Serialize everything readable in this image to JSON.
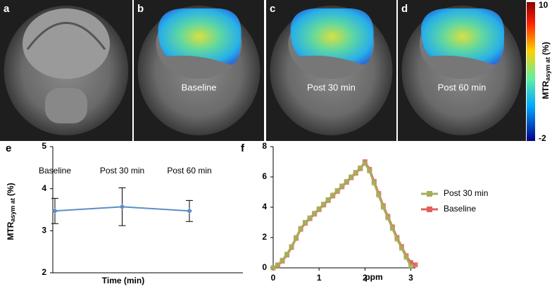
{
  "panels": [
    {
      "label": "a"
    },
    {
      "label": "b",
      "caption": "Baseline"
    },
    {
      "label": "c",
      "caption": "Post 30 min"
    },
    {
      "label": "d",
      "caption": "Post 60 min"
    }
  ],
  "colorbar": {
    "max": 10,
    "min": -2,
    "title": "MTR",
    "title_sub": "asym at",
    "title_unit": "(%)"
  },
  "chart_data": [
    {
      "type": "line",
      "label": "e",
      "categories": [
        "Baseline",
        "Post 30 min",
        "Post 60 min"
      ],
      "values": [
        3.47,
        3.57,
        3.47
      ],
      "errors": [
        0.3,
        0.45,
        0.25
      ],
      "color": "#5b8fc7",
      "ylim": [
        2,
        5
      ],
      "yticks": [
        2,
        3,
        4,
        5
      ],
      "xlabel": "Time (min)",
      "ylabel": "MTR",
      "ylabel_sub": "asym at",
      "ylabel_unit": "(%)"
    },
    {
      "type": "line",
      "label": "f",
      "x": [
        0,
        0.1,
        0.2,
        0.3,
        0.4,
        0.5,
        0.6,
        0.7,
        0.8,
        0.9,
        1.0,
        1.1,
        1.2,
        1.3,
        1.4,
        1.5,
        1.6,
        1.7,
        1.8,
        1.9,
        2.0,
        2.1,
        2.2,
        2.3,
        2.4,
        2.5,
        2.6,
        2.7,
        2.8,
        2.9,
        3.0,
        3.1
      ],
      "series": [
        {
          "name": "Post 30 min",
          "color": "#a8ad5c",
          "values": [
            0,
            0.2,
            0.5,
            0.9,
            1.4,
            2.0,
            2.6,
            3.0,
            3.3,
            3.6,
            3.9,
            4.2,
            4.5,
            4.8,
            5.1,
            5.4,
            5.7,
            6.0,
            6.3,
            6.6,
            6.9,
            6.4,
            5.6,
            4.8,
            4.0,
            3.3,
            2.6,
            1.9,
            1.3,
            0.7,
            0.1,
            null
          ]
        },
        {
          "name": "Baseline",
          "color": "#e0625c",
          "values": [
            0,
            0.15,
            0.45,
            0.85,
            1.35,
            1.95,
            2.55,
            2.95,
            3.25,
            3.55,
            3.85,
            4.15,
            4.45,
            4.75,
            5.05,
            5.35,
            5.65,
            5.95,
            6.25,
            6.55,
            7.0,
            6.5,
            5.7,
            4.9,
            4.1,
            3.4,
            2.7,
            2.0,
            1.4,
            0.8,
            0.35,
            0.2
          ]
        }
      ],
      "xlim": [
        0,
        3.1
      ],
      "ylim": [
        0,
        8
      ],
      "xticks": [
        0,
        1,
        2,
        3
      ],
      "yticks": [
        0,
        2,
        4,
        6,
        8
      ],
      "xlabel": "ppm",
      "legend": "right"
    }
  ]
}
